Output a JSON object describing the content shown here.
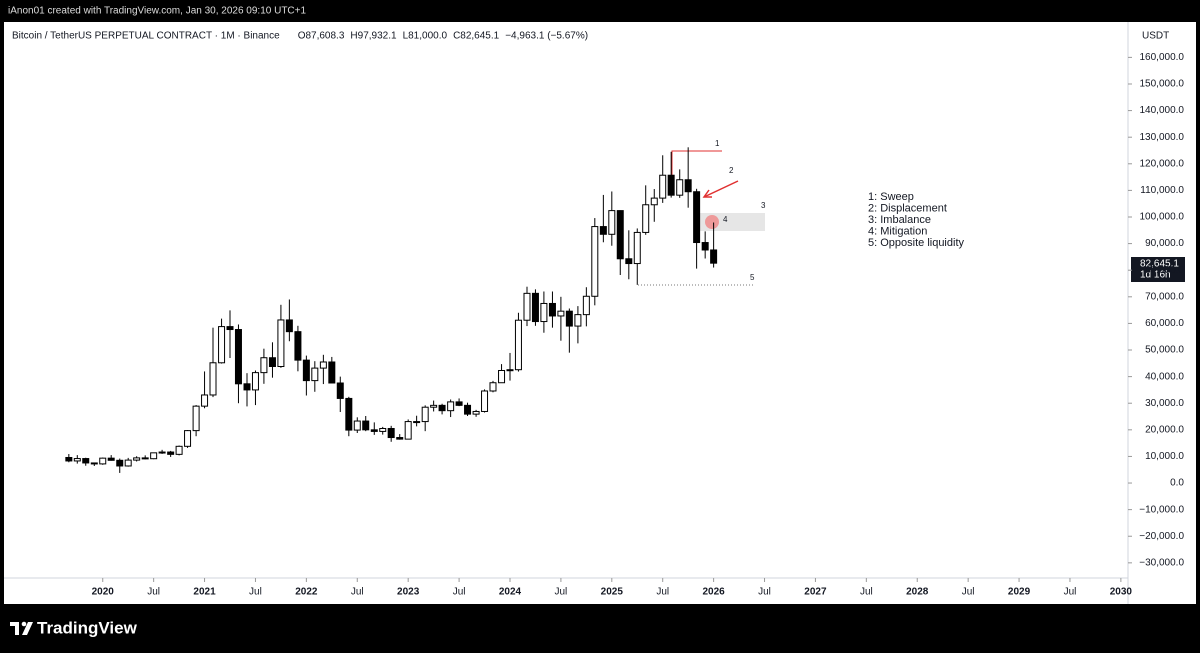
{
  "chart_data": {
    "type": "candlestick",
    "credit": "iAnon01 created with TradingView.com, Jan 30, 2026 09:10 UTC+1",
    "title": "Bitcoin / TetherUS PERPETUAL CONTRACT · 1M · Binance",
    "ohlc_text": [
      "O87,608.3",
      "H97,932.1",
      "L81,000.0",
      "C82,645.1",
      "−4,963.1 (−5.67%)"
    ],
    "currency": "USDT",
    "last_price_label": "82,645.1",
    "countdown": "1d 16h",
    "brand": "TradingView",
    "up_color": "#ffffff",
    "down_color": "#000000",
    "wick_color": "#000000",
    "x": [
      2019.667,
      2019.75,
      2019.833,
      2019.917,
      2020,
      2020.083,
      2020.167,
      2020.25,
      2020.333,
      2020.417,
      2020.5,
      2020.583,
      2020.667,
      2020.75,
      2020.833,
      2020.917,
      2021,
      2021.083,
      2021.167,
      2021.25,
      2021.333,
      2021.417,
      2021.5,
      2021.583,
      2021.667,
      2021.75,
      2021.833,
      2021.917,
      2022,
      2022.083,
      2022.167,
      2022.25,
      2022.333,
      2022.417,
      2022.5,
      2022.583,
      2022.667,
      2022.75,
      2022.833,
      2022.917,
      2023,
      2023.083,
      2023.167,
      2023.25,
      2023.333,
      2023.417,
      2023.5,
      2023.583,
      2023.667,
      2023.75,
      2023.833,
      2023.917,
      2024,
      2024.083,
      2024.167,
      2024.25,
      2024.333,
      2024.417,
      2024.5,
      2024.583,
      2024.667,
      2024.75,
      2024.833,
      2024.917,
      2025,
      2025.083,
      2025.167,
      2025.25,
      2025.333,
      2025.417,
      2025.5,
      2025.583,
      2025.667,
      2025.75,
      2025.833,
      2025.917,
      2026
    ],
    "open": [
      9600,
      8300,
      9200,
      7550,
      7190,
      9350,
      8540,
      6410,
      8620,
      9450,
      9140,
      11350,
      11650,
      10780,
      13800,
      19700,
      28900,
      33100,
      45200,
      58800,
      57700,
      37300,
      35000,
      41500,
      47100,
      43800,
      61300,
      56900,
      46200,
      38500,
      43200,
      45500,
      37600,
      31800,
      19900,
      23300,
      20000,
      19400,
      20500,
      17100,
      16500,
      23100,
      23100,
      28500,
      29200,
      27200,
      30500,
      29200,
      25900,
      26900,
      34600,
      37700,
      42300,
      42600,
      61200,
      71300,
      60700,
      67500,
      62800,
      64600,
      59000,
      63300,
      70200,
      96400,
      93500,
      102400,
      84300,
      82500,
      94200,
      104600,
      107100,
      115700,
      108200,
      114000,
      109500,
      90400,
      87608.3
    ],
    "high": [
      10900,
      10500,
      9500,
      7700,
      9600,
      10500,
      9200,
      9450,
      10070,
      10400,
      11450,
      12480,
      12080,
      14100,
      19900,
      29300,
      41950,
      58400,
      61800,
      64900,
      59600,
      41300,
      42300,
      50500,
      52900,
      67000,
      69000,
      59100,
      47900,
      45800,
      48200,
      47400,
      40000,
      32400,
      24700,
      25200,
      22800,
      21100,
      21500,
      18400,
      23900,
      25300,
      29200,
      31000,
      29800,
      31400,
      31800,
      30200,
      27500,
      35200,
      38400,
      44700,
      48900,
      64000,
      73800,
      72800,
      72000,
      72000,
      70000,
      65600,
      66500,
      73600,
      99600,
      108300,
      109600,
      102500,
      95000,
      95700,
      111900,
      110500,
      123200,
      124500,
      117900,
      126200,
      110600,
      94600,
      97932.1
    ],
    "low": [
      7800,
      7300,
      6500,
      6400,
      6850,
      8400,
      3800,
      6150,
      8100,
      8900,
      8960,
      10950,
      9800,
      10400,
      13200,
      17600,
      28100,
      32300,
      44900,
      47000,
      30000,
      28800,
      29300,
      37300,
      39600,
      43300,
      53300,
      42000,
      32900,
      34300,
      37200,
      37600,
      26700,
      17600,
      18800,
      19500,
      18100,
      18200,
      15500,
      16300,
      16500,
      21300,
      19500,
      26900,
      25800,
      24800,
      28900,
      25200,
      24900,
      26500,
      34100,
      37600,
      38500,
      41900,
      59000,
      59100,
      56500,
      58400,
      53500,
      49000,
      52500,
      58900,
      66800,
      90500,
      89200,
      78200,
      76600,
      74500,
      93300,
      98200,
      105300,
      107300,
      107200,
      103500,
      80600,
      84400,
      81000
    ],
    "close": [
      8300,
      9200,
      7550,
      7190,
      9350,
      8540,
      6410,
      8620,
      9450,
      9140,
      11350,
      11650,
      10780,
      13800,
      19700,
      28900,
      33100,
      45200,
      58800,
      57700,
      37300,
      35000,
      41500,
      47100,
      43800,
      61300,
      56900,
      46200,
      38500,
      43200,
      45500,
      37600,
      31800,
      19900,
      23300,
      20000,
      19400,
      20500,
      17100,
      16500,
      23100,
      23100,
      28500,
      29200,
      27200,
      30500,
      29200,
      25900,
      26900,
      34600,
      37700,
      42300,
      42600,
      61200,
      71300,
      60700,
      67500,
      62800,
      64600,
      59000,
      63300,
      70200,
      96400,
      93500,
      102400,
      84300,
      82500,
      94200,
      104600,
      107100,
      115700,
      108200,
      114000,
      109500,
      90400,
      87600,
      82645.1
    ],
    "xlim": [
      2019.04,
      2030.07
    ],
    "xticks": [
      2020,
      {
        "value": 2020.5,
        "label": "Jul"
      },
      2021,
      {
        "value": 2021.5,
        "label": "Jul"
      },
      2022,
      {
        "value": 2022.5,
        "label": "Jul"
      },
      2023,
      {
        "value": 2023.5,
        "label": "Jul"
      },
      2024,
      {
        "value": 2024.5,
        "label": "Jul"
      },
      2025,
      {
        "value": 2025.5,
        "label": "Jul"
      },
      2026,
      {
        "value": 2026.5,
        "label": "Jul"
      },
      2027,
      {
        "value": 2027.5,
        "label": "Jul"
      },
      2028,
      {
        "value": 2028.5,
        "label": "Jul"
      },
      2029,
      {
        "value": 2029.5,
        "label": "Jul"
      },
      2030
    ],
    "ylim": [
      -35700,
      173300
    ],
    "yticks": [
      {
        "value": 160000,
        "label": "160,000.0"
      },
      {
        "value": 150000,
        "label": "150,000.0"
      },
      {
        "value": 140000,
        "label": "140,000.0"
      },
      {
        "value": 130000,
        "label": "130,000.0"
      },
      {
        "value": 120000,
        "label": "120,000.0"
      },
      {
        "value": 110000,
        "label": "110,000.0"
      },
      {
        "value": 100000,
        "label": "100,000.0"
      },
      {
        "value": 90000,
        "label": "90,000.0"
      },
      {
        "value": 80000,
        "label": "80,000.0"
      },
      {
        "value": 70000,
        "label": "70,000.0"
      },
      {
        "value": 60000,
        "label": "60,000.0"
      },
      {
        "value": 50000,
        "label": "50,000.0"
      },
      {
        "value": 40000,
        "label": "40,000.0"
      },
      {
        "value": 30000,
        "label": "30,000.0"
      },
      {
        "value": 20000,
        "label": "20,000.0"
      },
      {
        "value": 10000,
        "label": "10,000.0"
      },
      {
        "value": 0,
        "label": "0.0"
      },
      {
        "value": -10000,
        "label": "−10,000.0"
      },
      {
        "value": -20000,
        "label": "−20,000.0"
      },
      {
        "value": -30000,
        "label": "−30,000.0"
      }
    ],
    "annotation_numbers": [
      "1",
      "2",
      "3",
      "4",
      "5"
    ],
    "legend_notes": [
      "1: Sweep",
      "2: Displacement",
      "3: Imbalance",
      "4: Mitigation",
      "5: Opposite liquidity"
    ]
  }
}
